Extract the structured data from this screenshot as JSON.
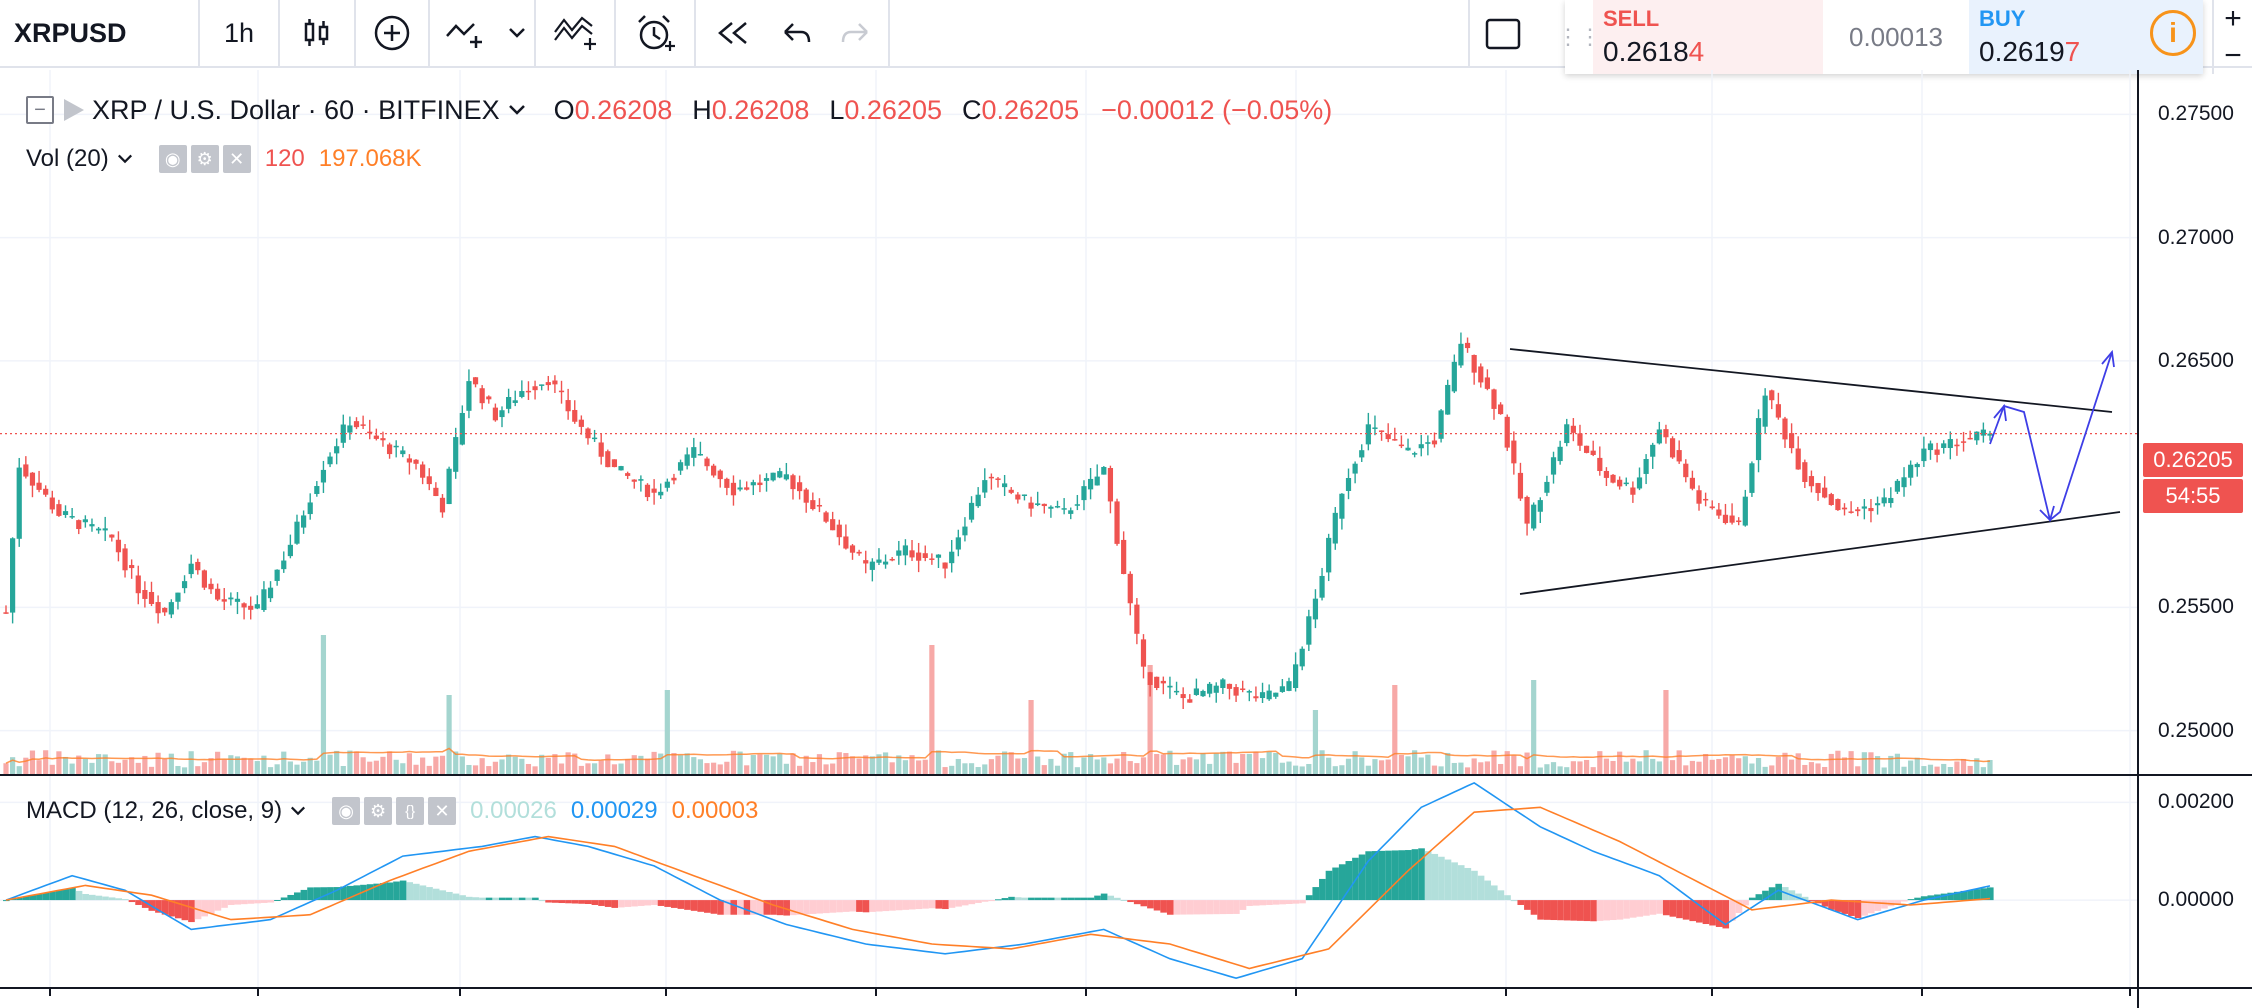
{
  "toolbar": {
    "symbol": "XRPUSD",
    "interval": "1h"
  },
  "trade": {
    "sell_label": "SELL",
    "sell_price_main": "0.2618",
    "sell_price_last": "4",
    "spread": "0.00013",
    "buy_label": "BUY",
    "buy_price_main": "0.2619",
    "buy_price_last": "7",
    "info_icon": "i"
  },
  "zoom": {
    "plus": "+",
    "minus": "−"
  },
  "legend": {
    "title": "XRP / U.S. Dollar · 60 · BITFINEX",
    "o_label": "O",
    "o": "0.26208",
    "h_label": "H",
    "h": "0.26208",
    "l_label": "L",
    "l": "0.26205",
    "c_label": "C",
    "c": "0.26205",
    "change": "−0.00012 (−0.05%)",
    "vol_label": "Vol (20)",
    "vol_value": "120",
    "vol_ma": "197.068K",
    "macd_label": "MACD (12, 26, close, 9)",
    "macd_hist": "0.00026",
    "macd_line": "0.00029",
    "macd_signal": "0.00003"
  },
  "price_tags": {
    "last": "0.26205",
    "countdown": "54:55"
  },
  "colors": {
    "up": "#26a69a",
    "down": "#ef5350",
    "vol_up": "#a4d5cf",
    "vol_down": "#f7a9a7",
    "macd_line": "#2196f3",
    "signal_line": "#ff7f27",
    "hist_up_strong": "#26a69a",
    "hist_up_weak": "#b2dfdb",
    "hist_down_strong": "#ef5350",
    "hist_down_weak": "#ffcdd2"
  },
  "chart_data": [
    {
      "type": "candlestick",
      "title": "XRP / U.S. Dollar · 60 · BITFINEX",
      "ylim": [
        0.2482,
        0.2768
      ],
      "yticks": [
        "0.27500",
        "0.27000",
        "0.26500",
        "0.25500",
        "0.25000"
      ],
      "y_axis_side": "right",
      "grid": true,
      "last_price": 0.26205,
      "anchors": [
        [
          0,
          0.2548
        ],
        [
          2,
          0.2608
        ],
        [
          8,
          0.2588
        ],
        [
          16,
          0.2578
        ],
        [
          20,
          0.2558
        ],
        [
          24,
          0.2548
        ],
        [
          28,
          0.2568
        ],
        [
          32,
          0.2553
        ],
        [
          38,
          0.2549
        ],
        [
          43,
          0.2576
        ],
        [
          48,
          0.2608
        ],
        [
          52,
          0.2626
        ],
        [
          56,
          0.2618
        ],
        [
          62,
          0.2608
        ],
        [
          66,
          0.2591
        ],
        [
          70,
          0.2643
        ],
        [
          74,
          0.2628
        ],
        [
          78,
          0.2638
        ],
        [
          82,
          0.2643
        ],
        [
          86,
          0.2626
        ],
        [
          92,
          0.2606
        ],
        [
          98,
          0.2596
        ],
        [
          104,
          0.2613
        ],
        [
          110,
          0.2598
        ],
        [
          118,
          0.2603
        ],
        [
          124,
          0.2586
        ],
        [
          130,
          0.2566
        ],
        [
          136,
          0.2573
        ],
        [
          142,
          0.2568
        ],
        [
          148,
          0.2603
        ],
        [
          154,
          0.2593
        ],
        [
          160,
          0.2588
        ],
        [
          166,
          0.2606
        ],
        [
          172,
          0.2523
        ],
        [
          178,
          0.2513
        ],
        [
          184,
          0.2518
        ],
        [
          190,
          0.2513
        ],
        [
          194,
          0.2518
        ],
        [
          198,
          0.2553
        ],
        [
          202,
          0.2598
        ],
        [
          206,
          0.2623
        ],
        [
          212,
          0.2613
        ],
        [
          216,
          0.2618
        ],
        [
          220,
          0.2658
        ],
        [
          226,
          0.2628
        ],
        [
          230,
          0.2583
        ],
        [
          236,
          0.2623
        ],
        [
          242,
          0.2603
        ],
        [
          246,
          0.2598
        ],
        [
          250,
          0.2623
        ],
        [
          256,
          0.2593
        ],
        [
          262,
          0.2583
        ],
        [
          266,
          0.2638
        ],
        [
          272,
          0.2603
        ],
        [
          278,
          0.2588
        ],
        [
          284,
          0.2593
        ],
        [
          290,
          0.2613
        ],
        [
          296,
          0.2618
        ],
        [
          300,
          0.26205
        ]
      ]
    },
    {
      "type": "bar",
      "title": "Vol (20)",
      "last_value": "120",
      "ma_value": "197.068K"
    },
    {
      "type": "line",
      "title": "MACD (12, 26, close, 9)",
      "yticks": [
        "0.00200",
        "0.00000"
      ],
      "ylim": [
        -0.0018,
        0.0025
      ],
      "series": [
        {
          "name": "MACD",
          "anchors": [
            [
              0,
              0.0
            ],
            [
              10,
              0.0005
            ],
            [
              18,
              0.0002
            ],
            [
              28,
              -0.0006
            ],
            [
              40,
              -0.0004
            ],
            [
              50,
              0.0002
            ],
            [
              60,
              0.0009
            ],
            [
              72,
              0.0011
            ],
            [
              80,
              0.0013
            ],
            [
              88,
              0.0011
            ],
            [
              98,
              0.0007
            ],
            [
              108,
              0.0
            ],
            [
              118,
              -0.0005
            ],
            [
              130,
              -0.0009
            ],
            [
              142,
              -0.0011
            ],
            [
              154,
              -0.0009
            ],
            [
              166,
              -0.0006
            ],
            [
              176,
              -0.0012
            ],
            [
              186,
              -0.0016
            ],
            [
              196,
              -0.0012
            ],
            [
              206,
              0.0008
            ],
            [
              214,
              0.0019
            ],
            [
              222,
              0.0024
            ],
            [
              232,
              0.0015
            ],
            [
              240,
              0.001
            ],
            [
              250,
              0.0005
            ],
            [
              260,
              -0.0005
            ],
            [
              268,
              0.0002
            ],
            [
              280,
              -0.0004
            ],
            [
              290,
              0.0
            ],
            [
              300,
              0.00029
            ]
          ]
        },
        {
          "name": "Signal",
          "anchors": [
            [
              0,
              0.0
            ],
            [
              12,
              0.0003
            ],
            [
              22,
              0.0001
            ],
            [
              34,
              -0.0004
            ],
            [
              46,
              -0.0003
            ],
            [
              58,
              0.0004
            ],
            [
              70,
              0.001
            ],
            [
              82,
              0.0013
            ],
            [
              92,
              0.0011
            ],
            [
              104,
              0.0005
            ],
            [
              116,
              -0.0001
            ],
            [
              128,
              -0.0006
            ],
            [
              140,
              -0.0009
            ],
            [
              152,
              -0.001
            ],
            [
              164,
              -0.0007
            ],
            [
              176,
              -0.0009
            ],
            [
              188,
              -0.0014
            ],
            [
              200,
              -0.001
            ],
            [
              212,
              0.0006
            ],
            [
              222,
              0.0018
            ],
            [
              232,
              0.0019
            ],
            [
              244,
              0.0012
            ],
            [
              254,
              0.0005
            ],
            [
              264,
              -0.0002
            ],
            [
              276,
              0.0
            ],
            [
              288,
              -0.0001
            ],
            [
              300,
              3e-05
            ]
          ]
        }
      ]
    }
  ]
}
